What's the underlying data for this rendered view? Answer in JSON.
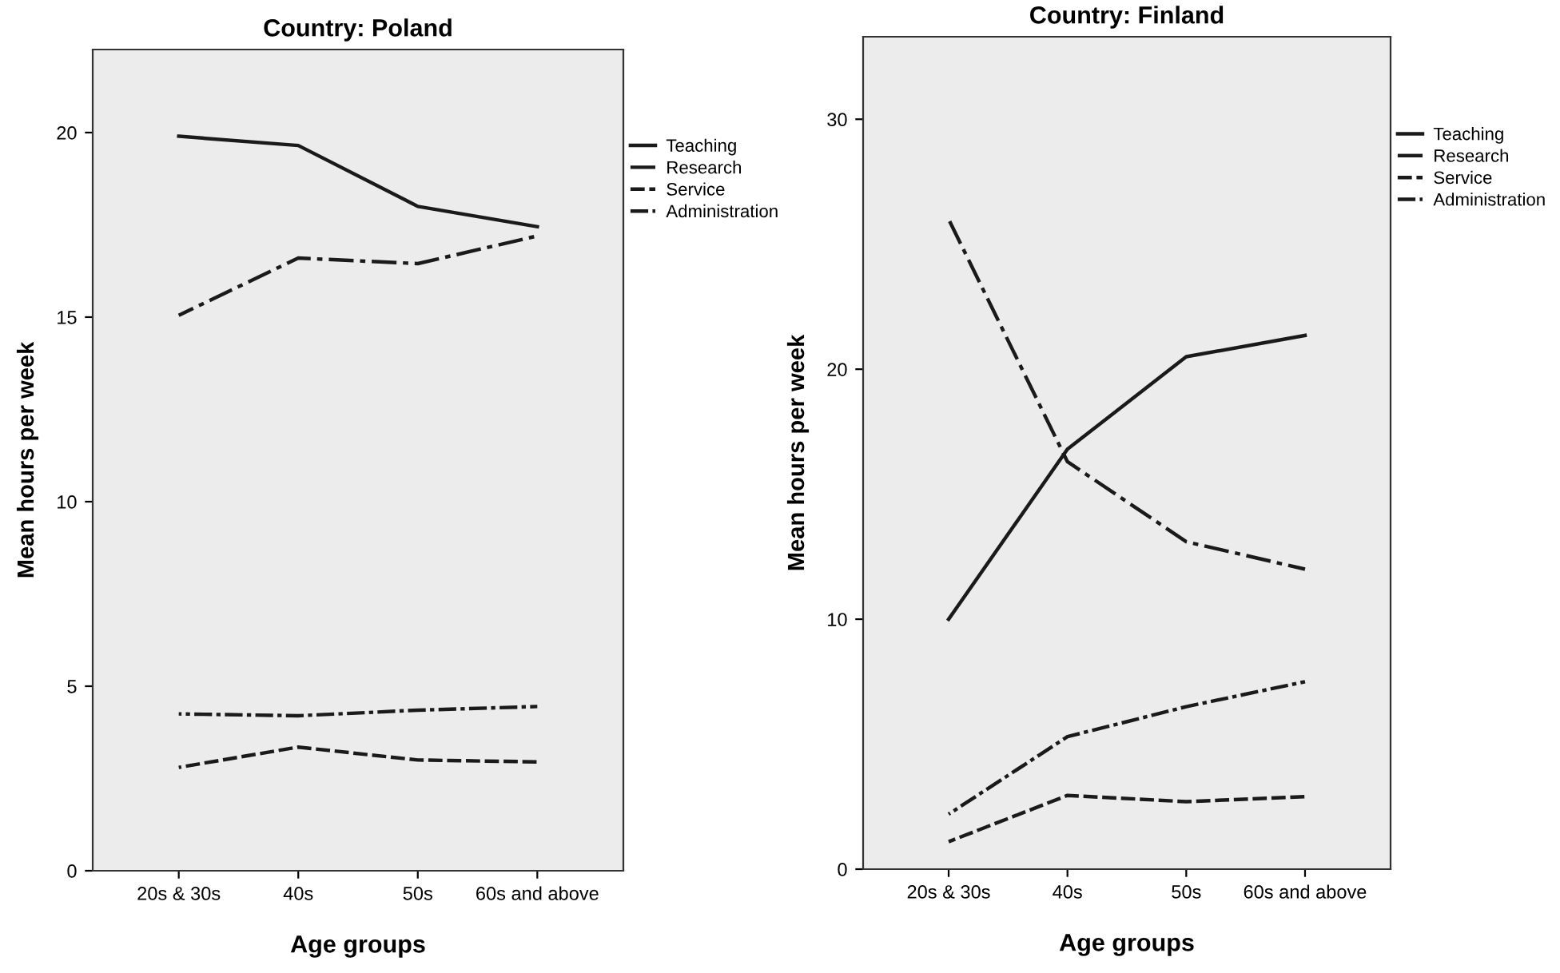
{
  "chart_data": [
    {
      "type": "line",
      "title": "Country: Poland",
      "xlabel": "Age groups",
      "ylabel": "Mean hours per week",
      "categories": [
        "20s & 30s",
        "40s",
        "50s",
        "60s and above"
      ],
      "ylim": [
        0,
        22.25
      ],
      "yticks": [
        0,
        5,
        10,
        15,
        20
      ],
      "grid": false,
      "legend": "top right",
      "marker": "none",
      "series": [
        {
          "name": "Teaching",
          "color": "#1a1a1a",
          "line_style": "solid",
          "values": [
            19.9,
            19.65,
            18.0,
            17.45
          ]
        },
        {
          "name": "Research",
          "color": "#1a1a1a",
          "line_style": "longdashdot",
          "values": [
            15.05,
            16.6,
            16.45,
            17.2
          ]
        },
        {
          "name": "Service",
          "color": "#1a1a1a",
          "line_style": "dashed",
          "values": [
            2.8,
            3.35,
            3.0,
            2.95
          ]
        },
        {
          "name": "Administration",
          "color": "#1a1a1a",
          "line_style": "dashdot",
          "values": [
            4.25,
            4.2,
            4.35,
            4.45
          ]
        }
      ]
    },
    {
      "type": "line",
      "title": "Country: Finland",
      "xlabel": "Age groups",
      "ylabel": "Mean hours per week",
      "categories": [
        "20s & 30s",
        "40s",
        "50s",
        "60s and above"
      ],
      "ylim": [
        0,
        33.3
      ],
      "yticks": [
        0,
        10,
        20,
        30
      ],
      "grid": false,
      "legend": "top right",
      "marker": "none",
      "series": [
        {
          "name": "Teaching",
          "color": "#1a1a1a",
          "line_style": "solid",
          "values": [
            10.0,
            16.8,
            20.5,
            21.35
          ]
        },
        {
          "name": "Research",
          "color": "#1a1a1a",
          "line_style": "longdashdot",
          "values": [
            26.0,
            16.3,
            13.1,
            12.0
          ]
        },
        {
          "name": "Service",
          "color": "#1a1a1a",
          "line_style": "dashed",
          "values": [
            1.1,
            2.95,
            2.7,
            2.9
          ]
        },
        {
          "name": "Administration",
          "color": "#1a1a1a",
          "line_style": "dashdot",
          "values": [
            2.2,
            5.3,
            6.5,
            7.5
          ]
        }
      ]
    }
  ]
}
